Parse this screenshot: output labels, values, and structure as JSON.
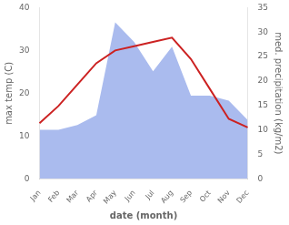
{
  "chart_data": {
    "type": "line",
    "xlabel": "date (month)",
    "ylabel": "max temp (C)",
    "y2label": "med. precipitation (kg/m2)",
    "categories": [
      "Jan",
      "Feb",
      "Mar",
      "Apr",
      "May",
      "Jun",
      "Jul",
      "Aug",
      "Sep",
      "Oct",
      "Nov",
      "Dec"
    ],
    "series": [
      {
        "type": "area",
        "axis": "y2",
        "color": "#aabbee",
        "values": [
          10,
          10,
          11,
          13,
          32,
          28,
          22,
          27,
          17,
          17,
          16,
          12
        ]
      },
      {
        "type": "line",
        "color": "#cc2222",
        "values": [
          13,
          17,
          22,
          27,
          30,
          31,
          32,
          33,
          28,
          21,
          14,
          12
        ]
      }
    ],
    "ylim": [
      0,
      40
    ],
    "yticks": [
      0,
      10,
      20,
      30,
      40
    ],
    "y2lim": [
      0,
      35
    ],
    "y2ticks": [
      0,
      5,
      10,
      15,
      20,
      25,
      30,
      35
    ],
    "grid": false
  }
}
